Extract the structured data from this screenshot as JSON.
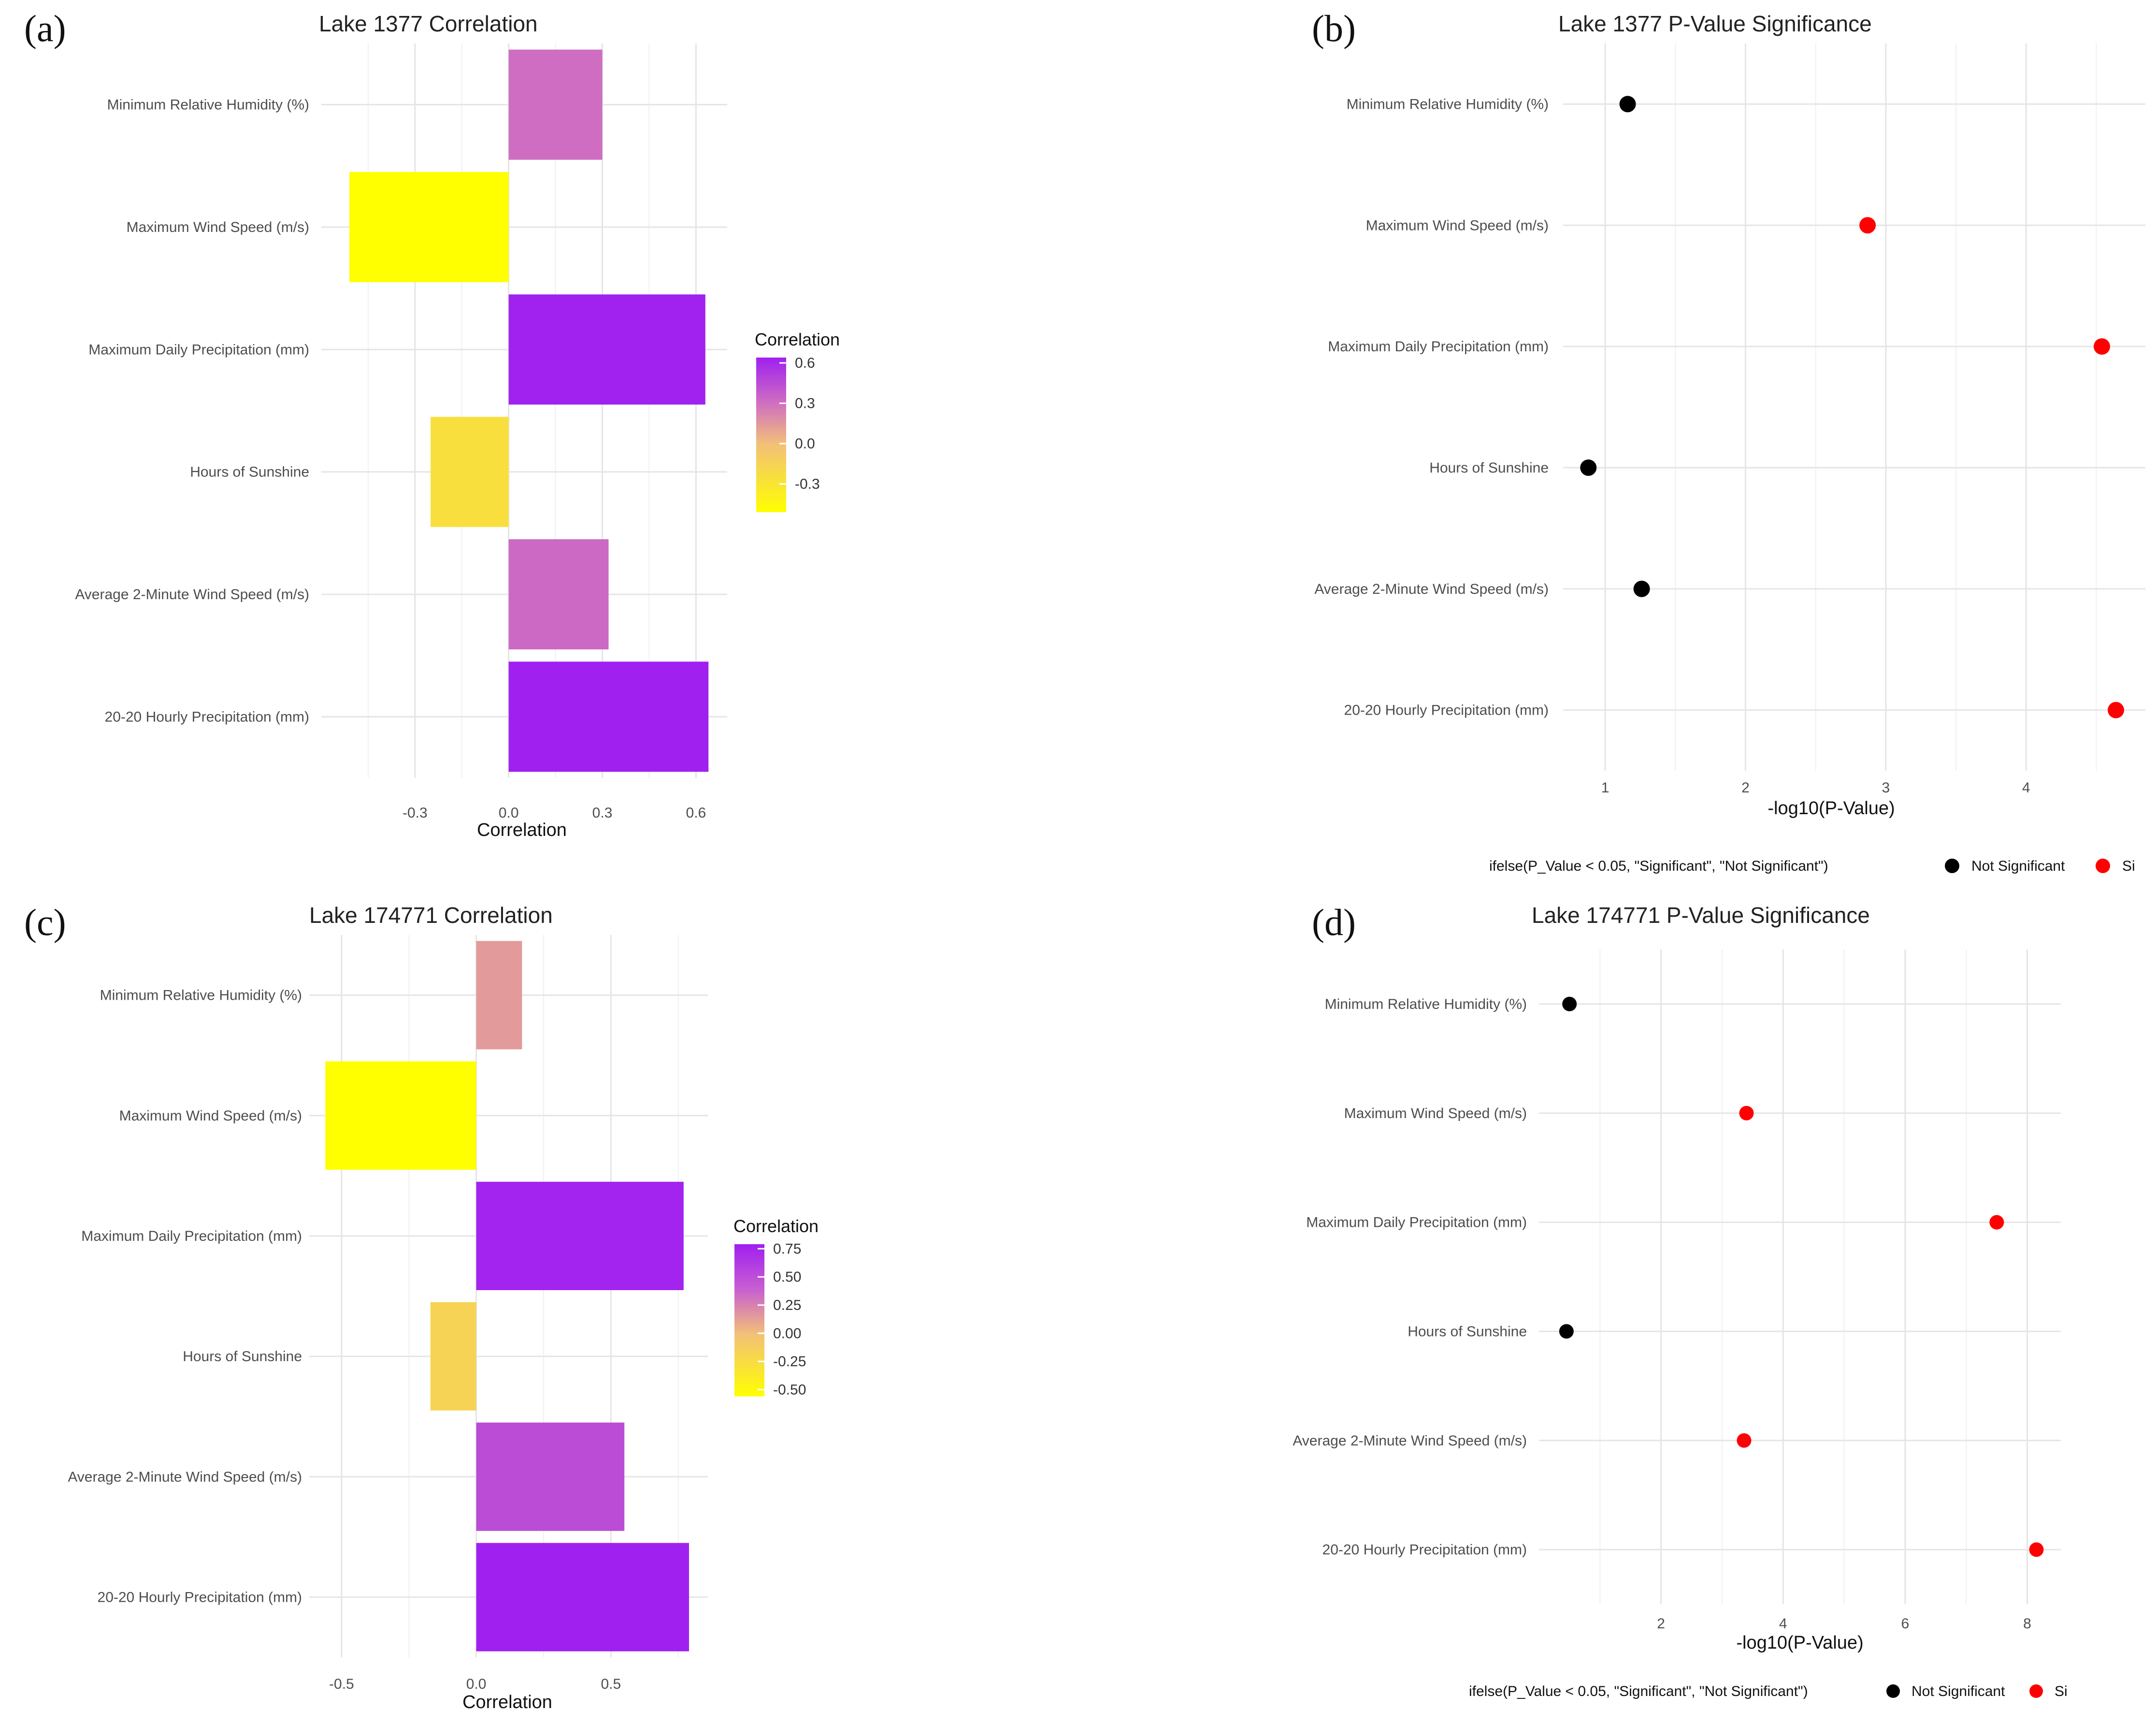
{
  "panels": [
    {
      "letter": "(a)",
      "chart_data": {
        "type": "bar",
        "orientation": "horizontal",
        "title": "Lake 1377 Correlation",
        "xlabel": "Correlation",
        "ylabel": "",
        "categories": [
          "20-20 Hourly Precipitation (mm)",
          "Average 2-Minute Wind Speed (m/s)",
          "Hours of Sunshine",
          "Maximum Daily Precipitation (mm)",
          "Maximum Wind Speed (m/s)",
          "Minimum Relative Humidity (%)"
        ],
        "values": [
          0.64,
          0.32,
          -0.25,
          0.63,
          -0.51,
          0.3
        ],
        "xlim": [
          -0.6,
          0.7
        ],
        "xticks": [
          -0.3,
          0.0,
          0.3,
          0.6
        ],
        "xtick_labels": [
          "-0.3",
          "0.0",
          "0.3",
          "0.6"
        ],
        "grid": true,
        "legend": {
          "title": "Correlation",
          "placement": "right",
          "type": "colorbar",
          "range": [
            -0.51,
            0.64
          ],
          "ticks": [
            0.6,
            0.3,
            0.0,
            -0.3
          ],
          "tick_labels": [
            "0.6",
            "0.3",
            "0.0",
            "-0.3"
          ],
          "low_color": "#ffff00",
          "mid_color": "#f2c078",
          "high_color": "#a020f0"
        }
      }
    },
    {
      "letter": "(b)",
      "chart_data": {
        "type": "scatter",
        "title": "Lake 1377 P-Value Significance",
        "xlabel": "-log10(P-Value)",
        "ylabel": "",
        "categories": [
          "20-20 Hourly Precipitation (mm)",
          "Average 2-Minute Wind Speed (m/s)",
          "Hours of Sunshine",
          "Maximum Daily Precipitation (mm)",
          "Maximum Wind Speed (m/s)",
          "Minimum Relative Humidity (%)"
        ],
        "values": [
          4.64,
          1.26,
          0.88,
          4.54,
          2.87,
          1.16
        ],
        "significant": [
          true,
          false,
          false,
          true,
          true,
          false
        ],
        "xlim": [
          0.7,
          4.85
        ],
        "xticks": [
          1,
          2,
          3,
          4
        ],
        "xtick_labels": [
          "1",
          "2",
          "3",
          "4"
        ],
        "grid": true,
        "legend": {
          "placement": "bottom",
          "title": "ifelse(P_Value < 0.05, \"Significant\", \"Not Significant\")",
          "items": [
            {
              "label": "Not Significant",
              "color": "#000000"
            },
            {
              "label": "Si",
              "color": "#ff0000"
            }
          ]
        }
      }
    },
    {
      "letter": "(c)",
      "chart_data": {
        "type": "bar",
        "orientation": "horizontal",
        "title": "Lake 174771 Correlation",
        "xlabel": "Correlation",
        "ylabel": "",
        "categories": [
          "20-20 Hourly Precipitation (mm)",
          "Average 2-Minute Wind Speed (m/s)",
          "Hours of Sunshine",
          "Maximum Daily Precipitation (mm)",
          "Maximum Wind Speed (m/s)",
          "Minimum Relative Humidity (%)"
        ],
        "values": [
          0.79,
          0.55,
          -0.17,
          0.77,
          -0.56,
          0.17
        ],
        "xlim": [
          -0.62,
          0.86
        ],
        "xticks": [
          -0.5,
          0.0,
          0.5
        ],
        "xtick_labels": [
          "-0.5",
          "0.0",
          "0.5"
        ],
        "grid": true,
        "legend": {
          "title": "Correlation",
          "placement": "right",
          "type": "colorbar",
          "range": [
            -0.56,
            0.79
          ],
          "ticks": [
            0.75,
            0.5,
            0.25,
            0.0,
            -0.25,
            -0.5
          ],
          "tick_labels": [
            "0.75",
            "0.50",
            "0.25",
            "0.00",
            "-0.25",
            "-0.50"
          ],
          "low_color": "#ffff00",
          "mid_color": "#f2c078",
          "high_color": "#a020f0"
        }
      }
    },
    {
      "letter": "(d)",
      "chart_data": {
        "type": "scatter",
        "title": "Lake 174771 P-Value Significance",
        "xlabel": "-log10(P-Value)",
        "ylabel": "",
        "categories": [
          "20-20 Hourly Precipitation (mm)",
          "Average 2-Minute Wind Speed (m/s)",
          "Hours of Sunshine",
          "Maximum Daily Precipitation (mm)",
          "Maximum Wind Speed (m/s)",
          "Minimum Relative Humidity (%)"
        ],
        "values": [
          8.15,
          3.36,
          0.45,
          7.5,
          3.4,
          0.5
        ],
        "significant": [
          true,
          true,
          false,
          true,
          true,
          false
        ],
        "xlim": [
          0.0,
          8.55
        ],
        "xticks": [
          2,
          4,
          6,
          8
        ],
        "xtick_labels": [
          "2",
          "4",
          "6",
          "8"
        ],
        "grid": true,
        "legend": {
          "placement": "bottom",
          "title": "ifelse(P_Value < 0.05, \"Significant\", \"Not Significant\")",
          "items": [
            {
              "label": "Not Significant",
              "color": "#000000"
            },
            {
              "label": "Si",
              "color": "#ff0000"
            }
          ]
        }
      }
    }
  ]
}
